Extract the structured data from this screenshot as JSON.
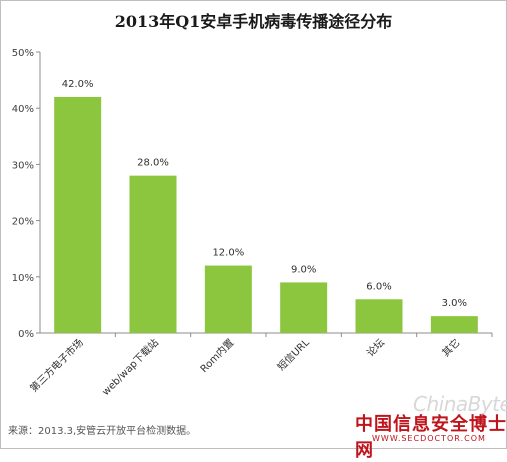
{
  "chart_data": {
    "type": "bar",
    "title": "2013年Q1安卓手机病毒传播途径分布",
    "categories": [
      "第三方电子市场",
      "web/wap下载站",
      "Rom内置",
      "短信URL",
      "论坛",
      "其它"
    ],
    "values": [
      42.0,
      28.0,
      12.0,
      9.0,
      6.0,
      3.0
    ],
    "value_labels": [
      "42.0%",
      "28.0%",
      "12.0%",
      "9.0%",
      "6.0%",
      "3.0%"
    ],
    "ylim": [
      0,
      50
    ],
    "yticks": [
      0,
      10,
      20,
      30,
      40,
      50
    ],
    "ytick_labels": [
      "0%",
      "10%",
      "20%",
      "30%",
      "40%",
      "50%"
    ],
    "bar_color": "#8cc63f",
    "grid": false,
    "legend": "none"
  },
  "source_note": "来源：2013.3,安管云开放平台检测数据。",
  "watermark": {
    "chinabyte": "ChinaByte",
    "cn_site": "中国信息安全博士网",
    "url": "WWW.SECDOCTOR.COM"
  }
}
